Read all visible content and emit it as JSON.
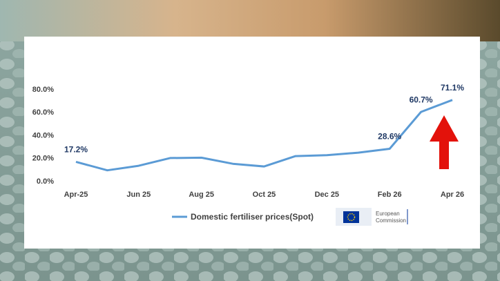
{
  "chart_data": {
    "type": "line",
    "categories": [
      "Apr-25",
      null,
      "Jun 25",
      null,
      "Aug 25",
      null,
      "Oct 25",
      null,
      "Dec 25",
      null,
      "Feb 26",
      null,
      "Apr 26"
    ],
    "series": [
      {
        "name": "Domestic fertiliser prices(Spot)",
        "color": "#5b9bd5",
        "values": [
          17.2,
          9.8,
          13.8,
          20.5,
          20.8,
          15.5,
          13.2,
          22.2,
          23.0,
          25.2,
          28.6,
          60.7,
          71.1
        ],
        "value_labels": [
          "17.2%",
          null,
          null,
          null,
          null,
          null,
          null,
          null,
          null,
          null,
          "28.6%",
          "60.7%",
          "71.1%"
        ]
      }
    ],
    "ylim": [
      0,
      80
    ],
    "yticks": [
      {
        "value": 0,
        "label": "0.0%"
      },
      {
        "value": 20,
        "label": "20.0%"
      },
      {
        "value": 40,
        "label": "40.0%"
      },
      {
        "value": 60,
        "label": "60.0%"
      },
      {
        "value": 80,
        "label": "80.0%"
      }
    ],
    "grid": false,
    "legend": "bottom",
    "logo": {
      "line1": "European",
      "line2": "Commission"
    }
  }
}
